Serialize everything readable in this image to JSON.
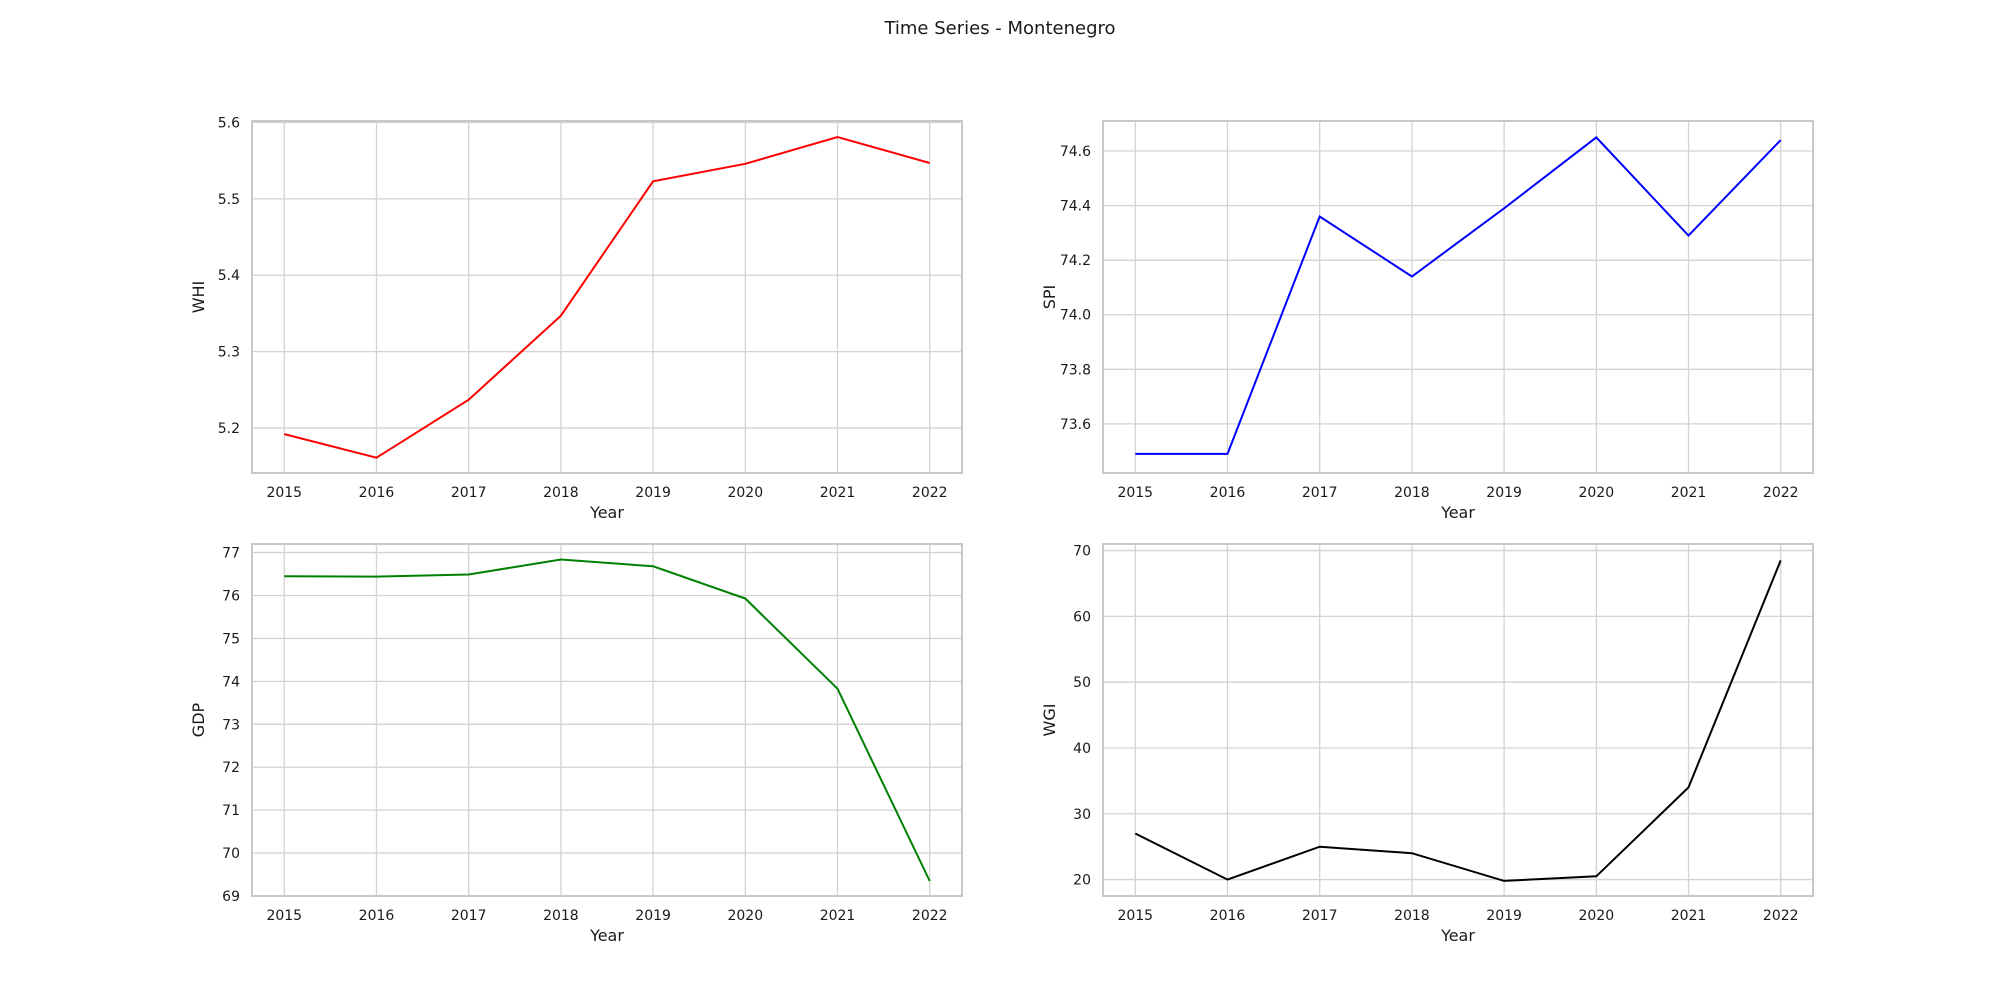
{
  "figure": {
    "title": "Time Series - Montenegro"
  },
  "chart_data": [
    {
      "type": "line",
      "title": "",
      "xlabel": "Year",
      "ylabel": "WHI",
      "x": [
        2015,
        2016,
        2017,
        2018,
        2019,
        2020,
        2021,
        2022
      ],
      "series": [
        {
          "values": [
            5.192,
            5.161,
            5.237,
            5.347,
            5.523,
            5.546,
            5.581,
            5.547
          ],
          "color": "#ff0000"
        }
      ],
      "xlim": [
        2014.65,
        2022.35
      ],
      "ylim": [
        5.141,
        5.602
      ],
      "yticks": [
        5.2,
        5.3,
        5.4,
        5.5,
        5.6
      ],
      "ytick_labels": [
        "5.2",
        "5.3",
        "5.4",
        "5.5",
        "5.6"
      ],
      "grid": true
    },
    {
      "type": "line",
      "title": "",
      "xlabel": "Year",
      "ylabel": "SPI",
      "x": [
        2015,
        2016,
        2017,
        2018,
        2019,
        2020,
        2021,
        2022
      ],
      "series": [
        {
          "values": [
            73.49,
            73.49,
            74.36,
            74.14,
            74.39,
            74.65,
            74.29,
            74.64
          ],
          "color": "#0000ff"
        }
      ],
      "xlim": [
        2014.65,
        2022.35
      ],
      "ylim": [
        73.42,
        74.71
      ],
      "yticks": [
        73.6,
        73.8,
        74.0,
        74.2,
        74.4,
        74.6
      ],
      "ytick_labels": [
        "73.6",
        "73.8",
        "74.0",
        "74.2",
        "74.4",
        "74.6"
      ],
      "grid": true
    },
    {
      "type": "line",
      "title": "",
      "xlabel": "Year",
      "ylabel": "GDP",
      "x": [
        2015,
        2016,
        2017,
        2018,
        2019,
        2020,
        2021,
        2022
      ],
      "series": [
        {
          "values": [
            76.45,
            76.44,
            76.49,
            76.84,
            76.68,
            75.93,
            73.83,
            69.35
          ],
          "color": "#008000"
        }
      ],
      "xlim": [
        2014.65,
        2022.35
      ],
      "ylim": [
        69.0,
        77.2
      ],
      "yticks": [
        69,
        70,
        71,
        72,
        73,
        74,
        75,
        76,
        77
      ],
      "ytick_labels": [
        "69",
        "70",
        "71",
        "72",
        "73",
        "74",
        "75",
        "76",
        "77"
      ],
      "grid": true
    },
    {
      "type": "line",
      "title": "",
      "xlabel": "Year",
      "ylabel": "WGI",
      "x": [
        2015,
        2016,
        2017,
        2018,
        2019,
        2020,
        2021,
        2022
      ],
      "series": [
        {
          "values": [
            27.0,
            20.0,
            25.0,
            24.0,
            19.8,
            20.5,
            34.0,
            68.5
          ],
          "color": "#000000"
        }
      ],
      "xlim": [
        2014.65,
        2022.35
      ],
      "ylim": [
        17.5,
        71.0
      ],
      "yticks": [
        20,
        30,
        40,
        50,
        60,
        70
      ],
      "ytick_labels": [
        "20",
        "30",
        "40",
        "50",
        "60",
        "70"
      ],
      "grid": true
    }
  ]
}
